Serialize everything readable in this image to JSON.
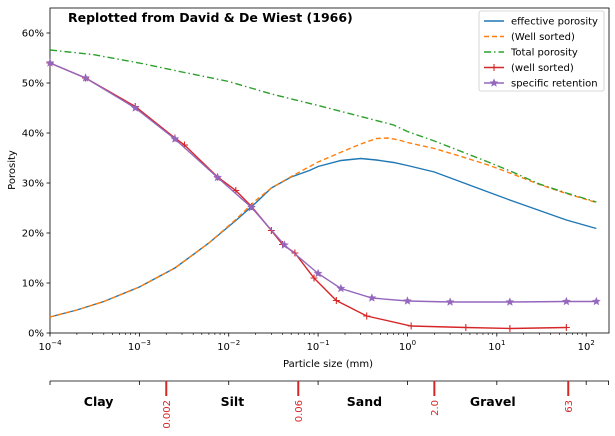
{
  "chart_data": {
    "type": "line",
    "title": "Replotted from David & De Wiest (1966)",
    "xlabel": "Particle size (mm)",
    "ylabel": "Porosity",
    "xscale": "log",
    "xlim": [
      0.0001,
      180
    ],
    "ylim": [
      0,
      65
    ],
    "grid": false,
    "legend": "top-right",
    "x_ticks": [
      {
        "value": 0.0001,
        "base": "10",
        "exp": "−4"
      },
      {
        "value": 0.001,
        "base": "10",
        "exp": "−3"
      },
      {
        "value": 0.01,
        "base": "10",
        "exp": "−2"
      },
      {
        "value": 0.1,
        "base": "10",
        "exp": "−1"
      },
      {
        "value": 1,
        "base": "10",
        "exp": "0"
      },
      {
        "value": 10,
        "base": "10",
        "exp": "1"
      },
      {
        "value": 100,
        "base": "10",
        "exp": "2"
      }
    ],
    "y_ticks": [
      {
        "value": 0,
        "label": "0%"
      },
      {
        "value": 10,
        "label": "10%"
      },
      {
        "value": 20,
        "label": "20%"
      },
      {
        "value": 30,
        "label": "30%"
      },
      {
        "value": 40,
        "label": "40%"
      },
      {
        "value": 50,
        "label": "50%"
      },
      {
        "value": 60,
        "label": "60%"
      }
    ],
    "series": [
      {
        "name": "effective porosity",
        "color": "#1f77b4",
        "style": "solid",
        "marker": "none",
        "points": [
          [
            0.0001,
            3.2
          ],
          [
            0.0002,
            4.6
          ],
          [
            0.0004,
            6.3
          ],
          [
            0.001,
            9.2
          ],
          [
            0.0025,
            13
          ],
          [
            0.006,
            18
          ],
          [
            0.012,
            22.5
          ],
          [
            0.02,
            26
          ],
          [
            0.03,
            29
          ],
          [
            0.05,
            31.2
          ],
          [
            0.08,
            32.5
          ],
          [
            0.1,
            33.3
          ],
          [
            0.18,
            34.5
          ],
          [
            0.3,
            34.9
          ],
          [
            0.45,
            34.6
          ],
          [
            0.7,
            34.1
          ],
          [
            1,
            33.5
          ],
          [
            2,
            32.2
          ],
          [
            4,
            30.2
          ],
          [
            8,
            28.2
          ],
          [
            15,
            26.4
          ],
          [
            30,
            24.5
          ],
          [
            60,
            22.6
          ],
          [
            130,
            20.9
          ]
        ]
      },
      {
        "name": "(Well sorted)",
        "color": "#ff7f0e",
        "style": "dashed",
        "marker": "none",
        "points": [
          [
            0.0001,
            3.2
          ],
          [
            0.0002,
            4.6
          ],
          [
            0.0004,
            6.3
          ],
          [
            0.001,
            9.2
          ],
          [
            0.0025,
            13
          ],
          [
            0.006,
            18
          ],
          [
            0.012,
            22.7
          ],
          [
            0.02,
            26.5
          ],
          [
            0.03,
            29
          ],
          [
            0.05,
            31.3
          ],
          [
            0.1,
            34.2
          ],
          [
            0.2,
            36.5
          ],
          [
            0.3,
            37.8
          ],
          [
            0.45,
            38.9
          ],
          [
            0.6,
            39
          ],
          [
            0.8,
            38.6
          ],
          [
            1,
            38.1
          ],
          [
            2,
            36.9
          ],
          [
            4,
            35.3
          ],
          [
            8,
            33.6
          ],
          [
            15,
            31.8
          ],
          [
            30,
            29.7
          ],
          [
            60,
            27.9
          ],
          [
            130,
            26.1
          ]
        ]
      },
      {
        "name": "Total porosity",
        "color": "#2ca02c",
        "style": "dashdot",
        "marker": "none",
        "points": [
          [
            0.0001,
            56.6
          ],
          [
            0.0003,
            55.7
          ],
          [
            0.001,
            54
          ],
          [
            0.003,
            52.2
          ],
          [
            0.01,
            50.3
          ],
          [
            0.03,
            47.8
          ],
          [
            0.1,
            45.5
          ],
          [
            0.3,
            43.3
          ],
          [
            0.7,
            41.6
          ],
          [
            1,
            40.3
          ],
          [
            2,
            38.4
          ],
          [
            4,
            36.3
          ],
          [
            8,
            34.2
          ],
          [
            15,
            32.2
          ],
          [
            30,
            29.8
          ],
          [
            60,
            28
          ],
          [
            130,
            26.2
          ]
        ]
      },
      {
        "name": "(well sorted)",
        "color": "#d62728",
        "style": "solid",
        "marker": "plus",
        "points": [
          [
            0.0001,
            54
          ],
          [
            0.00025,
            51
          ],
          [
            0.0009,
            45.3
          ],
          [
            0.0025,
            39
          ],
          [
            0.0032,
            37.6
          ],
          [
            0.0075,
            31.2
          ],
          [
            0.012,
            28.5
          ],
          [
            0.018,
            25.3
          ],
          [
            0.03,
            20.5
          ],
          [
            0.04,
            17.7
          ],
          [
            0.055,
            16
          ],
          [
            0.09,
            11
          ],
          [
            0.16,
            6.5
          ],
          [
            0.35,
            3.4
          ],
          [
            1.1,
            1.4
          ],
          [
            4.5,
            1.1
          ],
          [
            14,
            0.9
          ],
          [
            60,
            1.1
          ]
        ]
      },
      {
        "name": "specific retention",
        "color": "#9467bd",
        "style": "solid",
        "marker": "star",
        "points": [
          [
            0.0001,
            54
          ],
          [
            0.00025,
            51
          ],
          [
            0.0009,
            45
          ],
          [
            0.0025,
            38.8
          ],
          [
            0.0075,
            31.1
          ],
          [
            0.018,
            25.1
          ],
          [
            0.042,
            17.6
          ],
          [
            0.1,
            11.9
          ],
          [
            0.18,
            8.9
          ],
          [
            0.4,
            7
          ],
          [
            1,
            6.4
          ],
          [
            3,
            6.2
          ],
          [
            14,
            6.2
          ],
          [
            60,
            6.3
          ],
          [
            130,
            6.3
          ]
        ]
      }
    ]
  },
  "size_classes": {
    "classes": [
      {
        "label": "Clay",
        "center": 0.00035
      },
      {
        "label": "Silt",
        "center": 0.011
      },
      {
        "label": "Sand",
        "center": 0.33
      },
      {
        "label": "Gravel",
        "center": 9
      }
    ],
    "boundaries": [
      {
        "value": 0.002,
        "label": "0.002"
      },
      {
        "value": 0.06,
        "label": "0.06"
      },
      {
        "value": 2.0,
        "label": "2.0"
      },
      {
        "value": 63,
        "label": "63"
      }
    ]
  },
  "colors": {
    "boundary": "#d62728"
  }
}
